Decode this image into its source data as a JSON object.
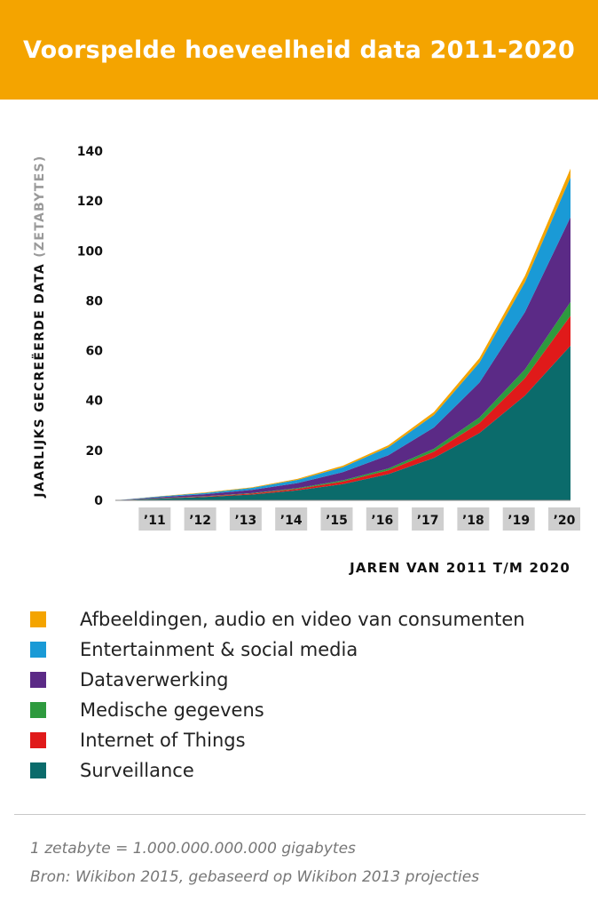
{
  "title": "Voorspelde hoeveelheid data 2011-2020",
  "legend": [
    {
      "label": "Afbeeldingen, audio en video van consumenten",
      "color": "#f4a400"
    },
    {
      "label": "Entertainment & social media",
      "color": "#1a9ad6"
    },
    {
      "label": "Dataverwerking",
      "color": "#5b2a86"
    },
    {
      "label": "Medische gegevens",
      "color": "#2e9a3e"
    },
    {
      "label": "Internet of Things",
      "color": "#e01a1a"
    },
    {
      "label": "Surveillance",
      "color": "#0b6b6b"
    }
  ],
  "footnotes": {
    "note1": "1 zetabyte = 1.000.000.000.000 gigabytes",
    "note2": "Bron: Wikibon 2015, gebaseerd op Wikibon 2013 projecties"
  },
  "chart_data": {
    "type": "area",
    "stacked": true,
    "title": "Voorspelde hoeveelheid data 2011-2020",
    "ylabel": "JAARLIJKS GECREËERDE DATA",
    "ylabel_unit": "(ZETABYTES)",
    "xlabel": "JAREN VAN 2011 T/M 2020",
    "ylim": [
      0,
      140
    ],
    "yticks": [
      0,
      20,
      40,
      60,
      80,
      100,
      120,
      140
    ],
    "x": [
      2010,
      2011,
      2012,
      2013,
      2014,
      2015,
      2016,
      2017,
      2018,
      2019,
      2020
    ],
    "xtick_labels": [
      "’11",
      "’12",
      "’13",
      "’14",
      "’15",
      "’16",
      "’17",
      "’18",
      "’19",
      "’20"
    ],
    "grid": false,
    "series": [
      {
        "name": "Surveillance",
        "color": "#0b6b6b",
        "values": [
          0,
          0.7,
          1.4,
          2.3,
          4,
          6.5,
          10.5,
          17,
          27,
          42,
          62
        ]
      },
      {
        "name": "Internet of Things",
        "color": "#e01a1a",
        "values": [
          0,
          0.1,
          0.2,
          0.4,
          0.6,
          1,
          1.5,
          2.5,
          4,
          7,
          12
        ]
      },
      {
        "name": "Medische gegevens",
        "color": "#2e9a3e",
        "values": [
          0,
          0.1,
          0.1,
          0.2,
          0.3,
          0.5,
          0.8,
          1.2,
          2.2,
          3.5,
          5.5
        ]
      },
      {
        "name": "Dataverwerking",
        "color": "#5b2a86",
        "values": [
          0,
          0.4,
          0.8,
          1.3,
          2,
          3.3,
          5.3,
          8.5,
          14,
          23,
          34
        ]
      },
      {
        "name": "Entertainment & social media",
        "color": "#1a9ad6",
        "values": [
          0,
          0.3,
          0.5,
          0.8,
          1.3,
          2,
          3.2,
          5,
          8,
          12,
          16
        ]
      },
      {
        "name": "Afbeeldingen, audio en video van consumenten",
        "color": "#f4a400",
        "values": [
          0,
          0.1,
          0.2,
          0.2,
          0.4,
          0.6,
          0.8,
          1.2,
          1.8,
          2.5,
          3.5
        ]
      }
    ]
  }
}
